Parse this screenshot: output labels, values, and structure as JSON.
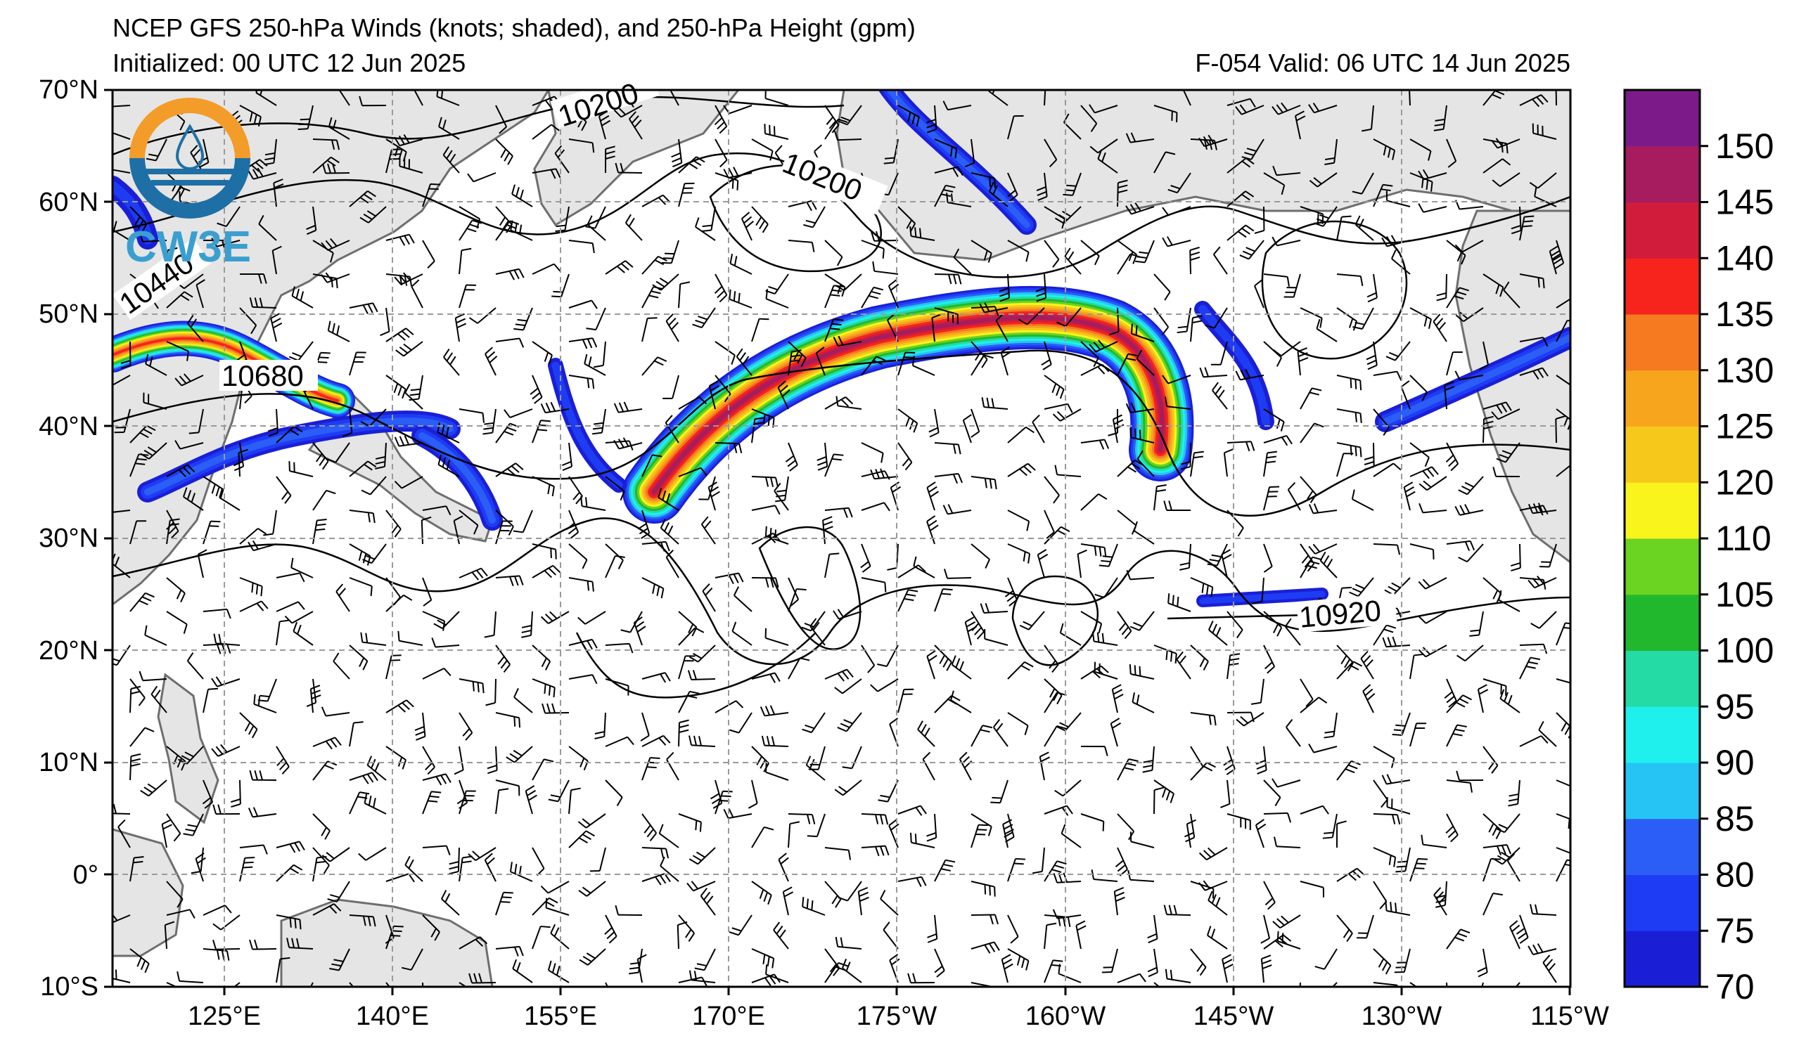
{
  "header": {
    "title": "NCEP GFS 250-hPa Winds (knots; shaded), and 250-hPa Height (gpm)",
    "initialized": "Initialized: 00 UTC 12 Jun 2025",
    "valid": "F-054  Valid: 06 UTC 14 Jun 2025"
  },
  "logo": {
    "text": "CW3E",
    "ring_colors": [
      "#f39c2a",
      "#1e6fa5"
    ]
  },
  "axes": {
    "lat_labels": [
      "70°N",
      "60°N",
      "50°N",
      "40°N",
      "30°N",
      "20°N",
      "10°N",
      "0°",
      "10°S"
    ],
    "lon_labels": [
      "125°E",
      "140°E",
      "155°E",
      "170°E",
      "175°W",
      "160°W",
      "145°W",
      "130°W",
      "115°W"
    ]
  },
  "contour_labels": [
    "10200",
    "10200",
    "10440",
    "10680",
    "10920"
  ],
  "colorbar": {
    "levels": [
      "70",
      "75",
      "80",
      "85",
      "90",
      "95",
      "100",
      "105",
      "110",
      "120",
      "125",
      "130",
      "135",
      "140",
      "145",
      "150"
    ],
    "colors": [
      "#1a1fd6",
      "#1f3cf5",
      "#2b5ef7",
      "#26c4f5",
      "#1ff0ee",
      "#24dba5",
      "#22b82e",
      "#6bd321",
      "#f8f41c",
      "#f7c81c",
      "#f8a51e",
      "#f57a20",
      "#f7241d",
      "#d11c3b",
      "#a61c5e",
      "#7c1a8a"
    ]
  },
  "style": {
    "land": "#e5e5e5",
    "coast": "#6e6e6e",
    "grid": "#9a9a9a"
  }
}
